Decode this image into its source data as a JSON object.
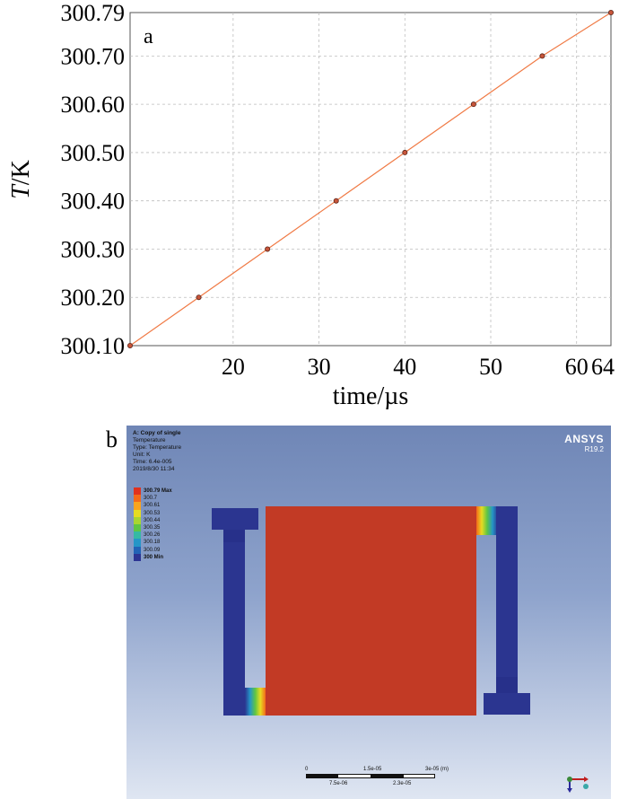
{
  "chart_data": {
    "type": "line",
    "panel_label": "a",
    "xlabel": "time/µs",
    "ylabel_italic": "T",
    "ylabel_rest": "/K",
    "xlim": [
      8,
      64
    ],
    "ylim": [
      300.1,
      300.79
    ],
    "x_ticks": [
      20,
      30,
      40,
      50,
      60,
      64
    ],
    "x_tick_labels": [
      "20",
      "30",
      "40",
      "50",
      "60",
      "64"
    ],
    "y_ticks": [
      300.1,
      300.2,
      300.3,
      300.4,
      300.5,
      300.6,
      300.7,
      300.79
    ],
    "y_tick_labels": [
      "300.10",
      "300.20",
      "300.30",
      "300.40",
      "300.50",
      "300.60",
      "300.70",
      "300.79"
    ],
    "grid": true,
    "series": [
      {
        "x": [
          8,
          16,
          24,
          32,
          40,
          48,
          56,
          64
        ],
        "y": [
          300.1,
          300.2,
          300.3,
          300.4,
          300.5,
          300.6,
          300.7,
          300.79
        ],
        "line_color": "#f07a45",
        "marker_color": "#c8553a",
        "marker_edge": "#5a2418"
      }
    ]
  },
  "panel_b": {
    "label": "b",
    "info": {
      "title": "A: Copy of single",
      "type": "Temperature",
      "type_line": "Type: Temperature",
      "unit": "Unit: K",
      "time": "Time: 6.4e-005",
      "date": "2019/8/30 11:34"
    },
    "brand": "ANSYS",
    "version": "R19.2",
    "legend": [
      {
        "label": "300.79 Max",
        "color": "#e0321e",
        "bold": true
      },
      {
        "label": "300.7",
        "color": "#f36a1a",
        "bold": false
      },
      {
        "label": "300.61",
        "color": "#f9a41e",
        "bold": false
      },
      {
        "label": "300.53",
        "color": "#e6dc22",
        "bold": false
      },
      {
        "label": "300.44",
        "color": "#a9d531",
        "bold": false
      },
      {
        "label": "300.35",
        "color": "#5fc544",
        "bold": false
      },
      {
        "label": "300.26",
        "color": "#35b9a4",
        "bold": false
      },
      {
        "label": "300.18",
        "color": "#2596c7",
        "bold": false
      },
      {
        "label": "300.09",
        "color": "#2263b6",
        "bold": false
      },
      {
        "label": "300 Min",
        "color": "#2c3493",
        "bold": true
      }
    ],
    "body_color": "#c23a25",
    "cold_color": "#2b3590",
    "scale_top": [
      "0",
      "1.5e-05",
      "3e-05 (m)"
    ],
    "scale_bottom": [
      "7.5e-06",
      "2.3e-05"
    ]
  }
}
